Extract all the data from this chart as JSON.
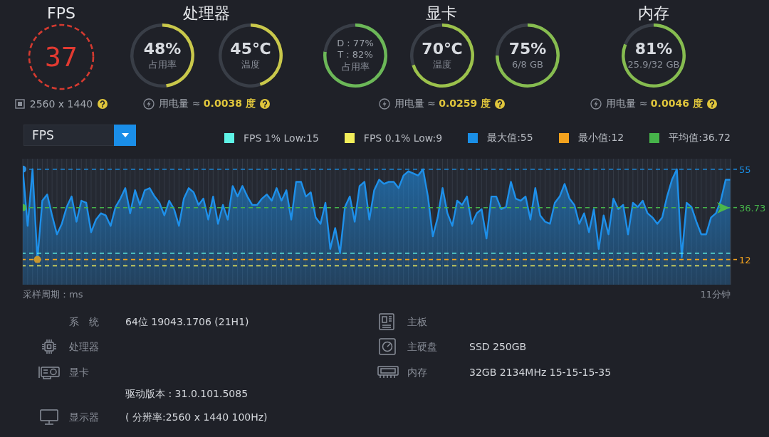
{
  "chart_data": [
    {
      "type": "other",
      "title": "FPS",
      "annotations": [
        "37",
        "2560 x 1440"
      ]
    },
    {
      "type": "donut",
      "title": "处理器",
      "subtitle": "用电量 ≈ 0.0038 度",
      "categories": [
        "占用率",
        null
      ],
      "values": [
        48,
        52
      ],
      "colors": [
        "#c9c84b",
        "#393e47"
      ],
      "value_labels": [
        "48%",
        null
      ]
    },
    {
      "type": "donut",
      "categories": [
        "温度",
        null
      ],
      "values": [
        45,
        55
      ],
      "colors": [
        "#c9c84b",
        "#393e47"
      ],
      "value_labels": [
        "45℃",
        null
      ]
    },
    {
      "type": "donut",
      "categories": [
        "占用率",
        null
      ],
      "values": [
        77,
        23
      ],
      "colors": [
        "#6cb858",
        "#393e47"
      ],
      "annotations": [
        "D : 77%",
        "T : 82%"
      ]
    },
    {
      "type": "donut",
      "title": "显卡",
      "subtitle": "用电量 ≈ 0.0259 度",
      "categories": [
        "温度",
        null
      ],
      "values": [
        70,
        30
      ],
      "colors": [
        "#9cc24c",
        "#393e47"
      ],
      "value_labels": [
        "70℃",
        null
      ]
    },
    {
      "type": "donut",
      "categories": [
        "6/8 GB",
        null
      ],
      "values": [
        75,
        25
      ],
      "colors": [
        "#86bc50",
        "#393e47"
      ],
      "value_labels": [
        "75%",
        null
      ]
    },
    {
      "type": "donut",
      "title": "内存",
      "subtitle": "用电量 ≈ 0.0046 度",
      "categories": [
        "25.9/32 GB",
        null
      ],
      "values": [
        81,
        19
      ],
      "colors": [
        "#86bc50",
        "#393e47"
      ],
      "value_labels": [
        "81%",
        null
      ]
    },
    {
      "type": "area",
      "title": "FPS",
      "xlabel": "采样周期：ms",
      "categories": [
        null,
        null,
        null,
        null,
        null,
        null,
        null,
        null,
        null,
        null,
        null,
        null,
        null,
        null,
        null,
        null,
        null,
        null,
        null,
        null,
        null,
        null,
        null,
        null,
        null,
        null,
        null,
        null,
        null,
        null,
        null,
        null,
        null,
        null,
        null,
        null,
        null,
        null,
        null,
        null,
        null,
        null,
        null,
        null,
        null,
        null,
        null,
        null,
        null,
        null,
        null,
        null,
        null,
        null,
        null,
        null,
        null,
        null,
        null,
        null,
        null,
        null,
        null,
        null,
        null,
        null,
        null,
        null,
        null,
        null,
        null,
        null,
        null,
        null,
        null,
        null,
        null,
        null,
        null,
        null,
        null,
        null,
        null,
        null,
        null,
        null,
        null,
        null,
        null,
        null,
        null,
        null,
        null,
        null,
        null,
        null,
        null,
        null,
        null,
        null,
        null,
        null,
        null,
        null,
        null,
        null,
        null,
        null,
        null,
        null,
        null,
        null,
        null,
        null,
        null,
        null,
        null,
        null,
        null,
        null,
        null,
        null,
        null,
        null,
        null,
        null,
        null,
        null,
        null,
        null,
        null,
        null,
        null,
        null,
        null,
        null,
        null,
        null,
        null,
        null,
        null,
        null,
        null,
        null,
        null,
        null
      ],
      "series": [
        {
          "color": "#1e90ea",
          "values": [
            55,
            28,
            55,
            12,
            40,
            43,
            33,
            24,
            29,
            37,
            42,
            30,
            40,
            39,
            25,
            31,
            34,
            33,
            28,
            37,
            41,
            46,
            34,
            45,
            38,
            45,
            46,
            42,
            39,
            33,
            40,
            36,
            28,
            41,
            46,
            44,
            38,
            41,
            31,
            42,
            29,
            38,
            31,
            47,
            42,
            47,
            42,
            38,
            38,
            41,
            43,
            40,
            46,
            40,
            45,
            31,
            49,
            49,
            42,
            44,
            32,
            29,
            39,
            17,
            27,
            15,
            37,
            42,
            30,
            47,
            49,
            31,
            45,
            50,
            48,
            49,
            49,
            46,
            52,
            54,
            53,
            52,
            55,
            42,
            23,
            32,
            46,
            34,
            28,
            40,
            38,
            42,
            29,
            34,
            36,
            22,
            42,
            42,
            36,
            37,
            49,
            41,
            40,
            42,
            31,
            46,
            33,
            30,
            29,
            39,
            42,
            48,
            41,
            38,
            29,
            34,
            25,
            36,
            17,
            33,
            24,
            41,
            36,
            38,
            24,
            39,
            37,
            40,
            34,
            32,
            29,
            32,
            42,
            50,
            55,
            13,
            39,
            37,
            30,
            24,
            24,
            32,
            34,
            40,
            50,
            50
          ]
        },
        {
          "type": "scatter",
          "color": "#2a8fe0",
          "values": [
            55,
            null,
            null,
            null,
            null,
            null,
            null,
            null,
            null,
            null,
            null,
            null,
            null,
            null,
            null,
            null,
            null,
            null,
            null,
            null,
            null,
            null,
            null,
            null,
            null,
            null,
            null,
            null,
            null,
            null,
            null,
            null,
            null,
            null,
            null,
            null,
            null,
            null,
            null,
            null,
            null,
            null,
            null,
            null,
            null,
            null,
            null,
            null,
            null,
            null,
            null,
            null,
            null,
            null,
            null,
            null,
            null,
            null,
            null,
            null,
            null,
            null,
            null,
            null,
            null,
            null,
            null,
            null,
            null,
            null,
            null,
            null,
            null,
            null,
            null,
            null,
            null,
            null,
            null,
            null,
            null,
            null,
            null,
            null,
            null,
            null,
            null,
            null,
            null,
            null,
            null,
            null,
            null,
            null,
            null,
            null,
            null,
            null,
            null,
            null,
            null,
            null,
            null,
            null,
            null,
            null,
            null,
            null,
            null,
            null,
            null,
            null,
            null,
            null,
            null,
            null,
            null,
            null,
            null,
            null,
            null,
            null,
            null,
            null,
            null,
            null,
            null,
            null,
            null,
            null,
            null,
            null,
            null,
            null,
            null,
            null,
            null,
            null,
            null,
            null,
            null,
            null,
            null,
            null,
            null,
            null
          ]
        },
        {
          "type": "scatter",
          "color": "#c8962e",
          "values": [
            null,
            null,
            null,
            12,
            null,
            null,
            null,
            null,
            null,
            null,
            null,
            null,
            null,
            null,
            null,
            null,
            null,
            null,
            null,
            null,
            null,
            null,
            null,
            null,
            null,
            null,
            null,
            null,
            null,
            null,
            null,
            null,
            null,
            null,
            null,
            null,
            null,
            null,
            null,
            null,
            null,
            null,
            null,
            null,
            null,
            null,
            null,
            null,
            null,
            null,
            null,
            null,
            null,
            null,
            null,
            null,
            null,
            null,
            null,
            null,
            null,
            null,
            null,
            null,
            null,
            null,
            null,
            null,
            null,
            null,
            null,
            null,
            null,
            null,
            null,
            null,
            null,
            null,
            null,
            null,
            null,
            null,
            null,
            null,
            null,
            null,
            null,
            null,
            null,
            null,
            null,
            null,
            null,
            null,
            null,
            null,
            null,
            null,
            null,
            null,
            null,
            null,
            null,
            null,
            null,
            null,
            null,
            null,
            null,
            null,
            null,
            null,
            null,
            null,
            null,
            null,
            null,
            null,
            null,
            null,
            null,
            null,
            null,
            null,
            null,
            null,
            null,
            null,
            null,
            null,
            null,
            null,
            null,
            null,
            null,
            null,
            null,
            null,
            null,
            null,
            null,
            null,
            null,
            null,
            null,
            null
          ]
        },
        {
          "type": "scatter",
          "color": "#4cb84c",
          "values": [
            36.72,
            null,
            null,
            null,
            null,
            null,
            null,
            null,
            null,
            null,
            null,
            null,
            null,
            null,
            null,
            null,
            null,
            null,
            null,
            null,
            null,
            null,
            null,
            null,
            null,
            null,
            null,
            null,
            null,
            null,
            null,
            null,
            null,
            null,
            null,
            null,
            null,
            null,
            null,
            null,
            null,
            null,
            null,
            null,
            null,
            null,
            null,
            null,
            null,
            null,
            null,
            null,
            null,
            null,
            null,
            null,
            null,
            null,
            null,
            null,
            null,
            null,
            null,
            null,
            null,
            null,
            null,
            null,
            null,
            null,
            null,
            null,
            null,
            null,
            null,
            null,
            null,
            null,
            null,
            null,
            null,
            null,
            null,
            null,
            null,
            null,
            null,
            null,
            null,
            null,
            null,
            null,
            null,
            null,
            null,
            null,
            null,
            null,
            null,
            null,
            null,
            null,
            null,
            null,
            null,
            null,
            null,
            null,
            null,
            null,
            null,
            null,
            null,
            null,
            null,
            null,
            null,
            null,
            null,
            null,
            null,
            null,
            null,
            null,
            null,
            null,
            null,
            null,
            null,
            null,
            null,
            null,
            null,
            null,
            null,
            null,
            null,
            null,
            null,
            null,
            null,
            null,
            null,
            null,
            null,
            null
          ]
        }
      ],
      "ylim": [
        0,
        60
      ],
      "yticks": [
        12,
        36.73,
        55
      ],
      "grid": "x",
      "tick_labels": "y",
      "legend": "top right",
      "ref_lines": [
        {
          "axis": "y",
          "value": 15,
          "label": "FPS 1% Low:15",
          "color": "#5ef2e6",
          "line_style": "dashed"
        },
        {
          "axis": "y",
          "value": 9,
          "label": "FPS 0.1% Low:9",
          "color": "#f2ee5a",
          "line_style": "dashed"
        },
        {
          "axis": "y",
          "value": 55,
          "label": "最大值:55",
          "color": "#1a8fe6",
          "line_style": "dashed"
        },
        {
          "axis": "y",
          "value": 12,
          "label": "最小值:12",
          "color": "#f2a21e",
          "line_style": "dashed"
        },
        {
          "axis": "y",
          "value": 36.72,
          "label": "平均值:36.72",
          "color": "#46b34a",
          "line_style": "dashed"
        }
      ],
      "annotations": [
        "11分钟"
      ]
    },
    {
      "type": "other",
      "annotations": [
        "系　统",
        "64位 19043.1706 (21H1)",
        "处理器",
        "显卡",
        "驱动版本 : 31.0.101.5085",
        "显示器",
        "( 分辨率:2560 x 1440 100Hz)",
        "主板",
        "主硬盘",
        "SSD 250GB",
        "内存",
        "32GB 2134MHz 15-15-15-35"
      ]
    }
  ]
}
